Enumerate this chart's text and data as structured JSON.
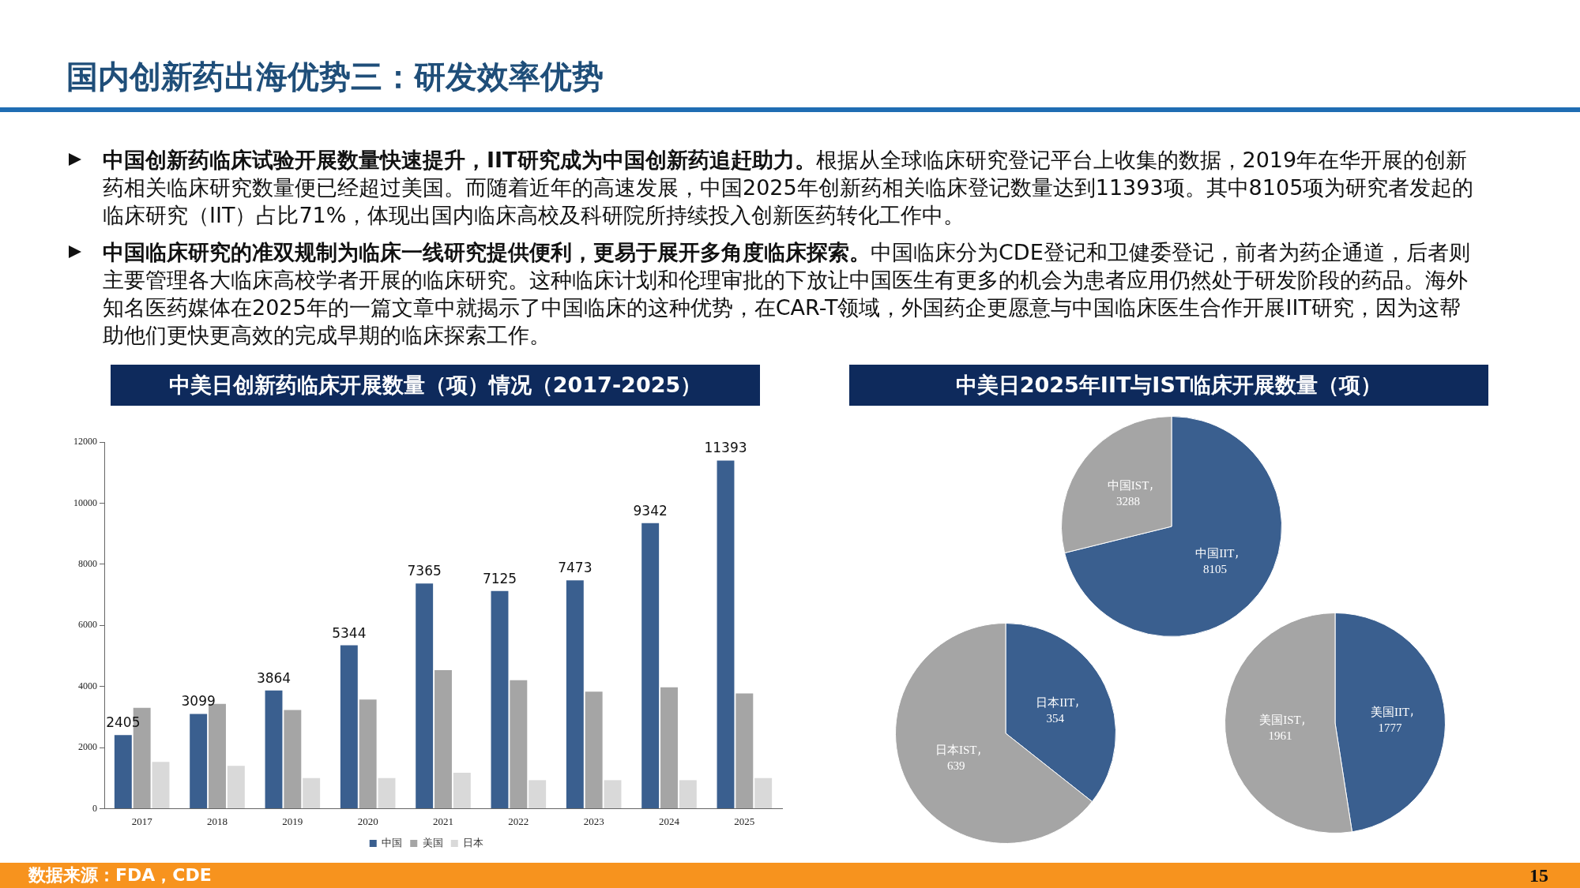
{
  "chart_data": [
    {
      "type": "bar",
      "title": "中美日创新药临床开展数量（项）情况（2017-2025）",
      "categories": [
        "2017",
        "2018",
        "2019",
        "2020",
        "2021",
        "2022",
        "2023",
        "2024",
        "2025"
      ],
      "series": [
        {
          "name": "中国",
          "color": "#3a5f8f",
          "values": [
            2405,
            3099,
            3864,
            5344,
            7365,
            7125,
            7473,
            9342,
            11393
          ],
          "value_labels": [
            "2405",
            "3099",
            "3864",
            "5344",
            "7365",
            "7125",
            "7473",
            "9342",
            "11393"
          ]
        },
        {
          "name": "美国",
          "color": "#a5a5a5",
          "values": [
            3300,
            3430,
            3230,
            3570,
            4530,
            4200,
            3830,
            3970,
            3770
          ]
        },
        {
          "name": "日本",
          "color": "#d9d9d9",
          "values": [
            1530,
            1400,
            1000,
            1000,
            1170,
            930,
            930,
            930,
            1000
          ]
        }
      ],
      "ylim": [
        0,
        12000
      ],
      "yticks": [
        0,
        2000,
        4000,
        6000,
        8000,
        10000,
        12000
      ],
      "grid": false,
      "legend": "bottom",
      "annotations": [
        "国内创新药出海优势三：研发效率优势",
        "中国创新药临床试验开展数量快速提升，IIT研究成为中国创新药追赶助力。根据从全球临床研究登记平台上收集的数据，2019年在华开展的创新药相关临床研究数量便已经超过美国。而随着近年的高速发展，中国2025年创新药相关临床登记数量达到11393项。其中8105项为研究者发起的临床研究（IIT）占比71%，体现出国内临床高校及科研院所持续投入创新医药转化工作中。",
        "中国临床研究的准双规制为临床一线研究提供便利，更易于展开多角度临床探索。中国临床分为CDE登记和卫健委登记，前者为药企通道，后者则主要管理各大临床高校学者开展的临床研究。这种临床计划和伦理审批的下放让中国医生有更多的机会为患者应用仍然处于研发阶段的药品。海外知名医药媒体在2025年的一篇文章中就揭示了中国临床的这种优势，在CAR-T领域，外国药企更愿意与中国临床医生合作开展IIT研究，因为这帮助他们更快更高效的完成早期的临床探索工作。",
        "数据来源：FDA，CDE",
        "15"
      ]
    },
    {
      "type": "pie",
      "title": "中美日2025年IIT与IST临床开展数量（项）",
      "categories": [
        "中国IIT",
        "中国IST"
      ],
      "values": [
        8105,
        3288
      ],
      "colors": [
        "#3a5f8f",
        "#a5a5a5"
      ],
      "data_labels": true
    },
    {
      "type": "pie",
      "categories": [
        "日本IIT",
        "日本IST"
      ],
      "values": [
        354,
        639
      ],
      "colors": [
        "#3a5f8f",
        "#a5a5a5"
      ],
      "data_labels": true
    },
    {
      "type": "pie",
      "categories": [
        "美国IIT",
        "美国IST"
      ],
      "values": [
        1777,
        1961
      ],
      "colors": [
        "#3a5f8f",
        "#a5a5a5"
      ],
      "data_labels": true
    }
  ]
}
